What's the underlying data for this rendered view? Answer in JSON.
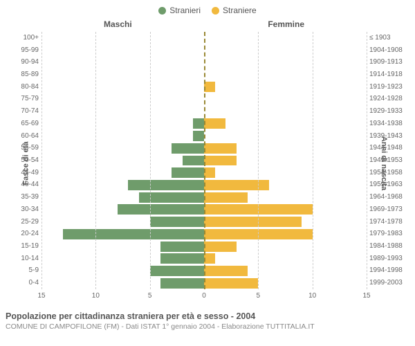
{
  "legend": {
    "male": {
      "label": "Stranieri",
      "color": "#6f9c6b"
    },
    "female": {
      "label": "Straniere",
      "color": "#f1b93e"
    }
  },
  "headers": {
    "left": "Maschi",
    "right": "Femmine",
    "axis_left": "Fasce di età",
    "axis_right": "Anni di nascita"
  },
  "chart": {
    "type": "population_pyramid",
    "xlim": 15,
    "xtick_step": 5,
    "xticks_left": [
      "15",
      "10",
      "5"
    ],
    "xticks_right": [
      "5",
      "10",
      "15"
    ],
    "grid_color": "#cccccc",
    "zero_color": "#998833",
    "background": "#ffffff",
    "label_fontsize": 10,
    "rows": [
      {
        "age": "100+",
        "year": "≤ 1903",
        "m": 0,
        "f": 0
      },
      {
        "age": "95-99",
        "year": "1904-1908",
        "m": 0,
        "f": 0
      },
      {
        "age": "90-94",
        "year": "1909-1913",
        "m": 0,
        "f": 0
      },
      {
        "age": "85-89",
        "year": "1914-1918",
        "m": 0,
        "f": 0
      },
      {
        "age": "80-84",
        "year": "1919-1923",
        "m": 0,
        "f": 1
      },
      {
        "age": "75-79",
        "year": "1924-1928",
        "m": 0,
        "f": 0
      },
      {
        "age": "70-74",
        "year": "1929-1933",
        "m": 0,
        "f": 0
      },
      {
        "age": "65-69",
        "year": "1934-1938",
        "m": 1,
        "f": 2
      },
      {
        "age": "60-64",
        "year": "1939-1943",
        "m": 1,
        "f": 0
      },
      {
        "age": "55-59",
        "year": "1944-1948",
        "m": 3,
        "f": 3
      },
      {
        "age": "50-54",
        "year": "1949-1953",
        "m": 2,
        "f": 3
      },
      {
        "age": "45-49",
        "year": "1954-1958",
        "m": 3,
        "f": 1
      },
      {
        "age": "40-44",
        "year": "1959-1963",
        "m": 7,
        "f": 6
      },
      {
        "age": "35-39",
        "year": "1964-1968",
        "m": 6,
        "f": 4
      },
      {
        "age": "30-34",
        "year": "1969-1973",
        "m": 8,
        "f": 10
      },
      {
        "age": "25-29",
        "year": "1974-1978",
        "m": 5,
        "f": 9
      },
      {
        "age": "20-24",
        "year": "1979-1983",
        "m": 13,
        "f": 10
      },
      {
        "age": "15-19",
        "year": "1984-1988",
        "m": 4,
        "f": 3
      },
      {
        "age": "10-14",
        "year": "1989-1993",
        "m": 4,
        "f": 1
      },
      {
        "age": "5-9",
        "year": "1994-1998",
        "m": 5,
        "f": 4
      },
      {
        "age": "0-4",
        "year": "1999-2003",
        "m": 4,
        "f": 5
      }
    ]
  },
  "caption": {
    "title": "Popolazione per cittadinanza straniera per età e sesso - 2004",
    "subtitle": "COMUNE DI CAMPOFILONE (FM) - Dati ISTAT 1° gennaio 2004 - Elaborazione TUTTITALIA.IT"
  }
}
